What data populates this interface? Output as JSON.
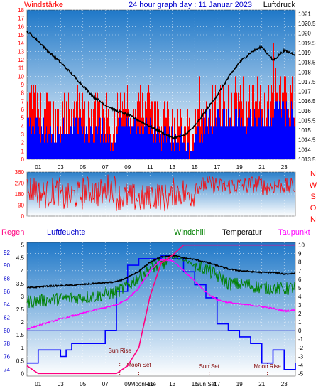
{
  "header": {
    "left_label": "Windstärke",
    "title": "24 hour graph day : 11 Januar 2023",
    "right_label": "Luftdruck"
  },
  "direction_labels": [
    "N",
    "W",
    "S",
    "O",
    "N"
  ],
  "lower_labels": {
    "regen": "Regen",
    "luftfeuchte": "Luftfeuchte",
    "windchill": "Windchill",
    "temperatur": "Temperatur",
    "taupunkt": "Taupunkt"
  },
  "colors": {
    "wind": "#ff0000",
    "wind_low": "#0000ff",
    "pressure": "#000000",
    "humidity": "#0000ff",
    "windchill": "#008000",
    "temperature": "#000000",
    "dewpoint": "#ff00ff",
    "rain": "#ff0080",
    "panel_top": "#1f78c8",
    "panel_bottom": "#ffffff"
  },
  "chart_data": [
    {
      "type": "line",
      "x_ticks": [
        "01",
        "03",
        "05",
        "07",
        "09",
        "11",
        "13",
        "15",
        "17",
        "19",
        "21",
        "23"
      ],
      "left_axis": {
        "ticks": [
          0,
          1,
          2,
          3,
          4,
          5,
          6,
          7,
          8,
          9,
          10,
          11,
          12,
          13,
          14,
          15,
          16,
          17,
          18
        ],
        "ylim": [
          0,
          18
        ]
      },
      "right_axis": {
        "ticks": [
          "1013.5",
          "1014",
          "1014.5",
          "1015",
          "1015.5",
          "1016",
          "1016.5",
          "1017",
          "1017.5",
          "1018",
          "1018.5",
          "1019",
          "1019.5",
          "1020",
          "1020.5",
          "1021"
        ],
        "ylim": [
          1013.5,
          1021.2
        ]
      },
      "pressure_points": [
        [
          0,
          1020.1
        ],
        [
          1,
          1019.6
        ],
        [
          2,
          1019.0
        ],
        [
          3,
          1018.5
        ],
        [
          4,
          1017.9
        ],
        [
          5,
          1017.3
        ],
        [
          6,
          1016.7
        ],
        [
          7,
          1016.3
        ],
        [
          8,
          1016.0
        ],
        [
          9,
          1015.8
        ],
        [
          10,
          1015.5
        ],
        [
          11,
          1015.2
        ],
        [
          12,
          1014.9
        ],
        [
          13,
          1014.6
        ],
        [
          14,
          1014.7
        ],
        [
          15,
          1015.2
        ],
        [
          16,
          1016.0
        ],
        [
          17,
          1016.8
        ],
        [
          18,
          1017.7
        ],
        [
          19,
          1018.5
        ],
        [
          20,
          1019.0
        ],
        [
          21,
          1019.3
        ],
        [
          22,
          1018.6
        ],
        [
          23,
          1019.1
        ],
        [
          24,
          1018.9
        ]
      ],
      "wind_level_hourly": [
        5.5,
        4.5,
        4.0,
        4.5,
        5.0,
        4.0,
        4.5,
        3.5,
        5.0,
        5.5,
        5.0,
        4.0,
        3.5,
        3.5,
        2.5,
        4.5,
        5.5,
        6.0,
        6.0,
        5.5,
        6.0,
        5.5,
        7.0,
        6.5
      ],
      "wind_gust_hourly": [
        16,
        13,
        11,
        9,
        10,
        9,
        10,
        8,
        12,
        13,
        12,
        9,
        8,
        8,
        5,
        10,
        14,
        15,
        12,
        11,
        12,
        11,
        18,
        14
      ]
    },
    {
      "type": "line",
      "direction_ticks": [
        0,
        90,
        180,
        270,
        360
      ],
      "ylim": [
        0,
        360
      ],
      "direction_hourly": [
        220,
        180,
        200,
        150,
        170,
        210,
        190,
        230,
        160,
        150,
        140,
        170,
        150,
        200,
        180,
        250,
        260,
        240,
        250,
        250,
        260,
        240,
        250,
        240
      ]
    },
    {
      "type": "line",
      "humidity_axis": {
        "ticks": [
          74,
          76,
          78,
          80,
          82,
          84,
          86,
          88,
          90,
          92
        ],
        "ylim": [
          73,
          93.5
        ]
      },
      "rain_axis": {
        "ticks": [
          "0",
          "0.5",
          "1",
          "1.5",
          "2",
          "2.5",
          "3",
          "3.5",
          "4",
          "4.5",
          "5"
        ],
        "ylim": [
          -0.1,
          5.1
        ]
      },
      "temperature_axis": {
        "ticks": [
          -5,
          -4,
          -3,
          -2,
          -1,
          0,
          1,
          2,
          3,
          4,
          5,
          6,
          7,
          8,
          9,
          10
        ],
        "ylim": [
          -5.3,
          10.3
        ]
      },
      "humidity_points": [
        [
          0,
          75
        ],
        [
          0.5,
          75
        ],
        [
          1,
          77
        ],
        [
          2,
          77
        ],
        [
          3,
          76
        ],
        [
          3.5,
          77
        ],
        [
          4,
          78
        ],
        [
          6,
          78
        ],
        [
          7,
          80
        ],
        [
          8,
          86
        ],
        [
          9,
          90
        ],
        [
          10,
          91
        ],
        [
          11,
          91
        ],
        [
          12,
          91.5
        ],
        [
          13,
          91
        ],
        [
          14,
          89
        ],
        [
          15,
          87
        ],
        [
          16,
          85
        ],
        [
          17,
          81
        ],
        [
          18,
          80
        ],
        [
          19,
          79
        ],
        [
          20,
          78
        ],
        [
          21,
          75
        ],
        [
          22,
          77
        ],
        [
          23,
          74
        ],
        [
          24,
          75
        ]
      ],
      "temperature_points": [
        [
          0,
          5.0
        ],
        [
          2,
          5.2
        ],
        [
          4,
          5.3
        ],
        [
          6,
          5.5
        ],
        [
          8,
          5.7
        ],
        [
          9,
          6.2
        ],
        [
          10,
          6.9
        ],
        [
          11,
          8.0
        ],
        [
          12,
          8.6
        ],
        [
          13,
          8.8
        ],
        [
          14,
          8.5
        ],
        [
          15,
          8.3
        ],
        [
          16,
          8.0
        ],
        [
          17,
          7.6
        ],
        [
          18,
          7.2
        ],
        [
          19,
          7.0
        ],
        [
          20,
          6.9
        ],
        [
          21,
          6.8
        ],
        [
          22,
          6.8
        ],
        [
          23,
          6.6
        ],
        [
          24,
          6.7
        ]
      ],
      "windchill_points": [
        [
          0,
          3.4
        ],
        [
          2,
          3.6
        ],
        [
          4,
          3.8
        ],
        [
          6,
          4.0
        ],
        [
          8,
          4.5
        ],
        [
          9,
          5.2
        ],
        [
          10,
          6.3
        ],
        [
          11,
          7.3
        ],
        [
          12,
          7.7
        ],
        [
          13,
          8.6
        ],
        [
          14,
          8.3
        ],
        [
          15,
          7.6
        ],
        [
          16,
          7.2
        ],
        [
          17,
          6.4
        ],
        [
          18,
          5.5
        ],
        [
          19,
          5.4
        ],
        [
          20,
          5.3
        ],
        [
          21,
          5.0
        ],
        [
          22,
          5.0
        ],
        [
          23,
          4.8
        ],
        [
          24,
          5.1
        ]
      ],
      "dewpoint_points": [
        [
          0,
          0.2
        ],
        [
          2,
          1.0
        ],
        [
          4,
          1.7
        ],
        [
          6,
          2.4
        ],
        [
          8,
          3.0
        ],
        [
          9,
          3.7
        ],
        [
          10,
          5.0
        ],
        [
          11,
          7.0
        ],
        [
          12,
          8.3
        ],
        [
          13,
          8.2
        ],
        [
          14,
          7.0
        ],
        [
          15,
          5.8
        ],
        [
          16,
          4.5
        ],
        [
          17,
          3.6
        ],
        [
          18,
          3.3
        ],
        [
          19,
          3.1
        ],
        [
          20,
          3.0
        ],
        [
          21,
          2.8
        ],
        [
          22,
          2.6
        ],
        [
          23,
          2.3
        ],
        [
          24,
          2.4
        ]
      ],
      "rain_points": [
        [
          0,
          0.3
        ],
        [
          1,
          0
        ],
        [
          8,
          0
        ],
        [
          9,
          0.3
        ],
        [
          10,
          1.0
        ],
        [
          11,
          3.0
        ],
        [
          12,
          4.3
        ],
        [
          13,
          4.6
        ],
        [
          14,
          5.0
        ],
        [
          24,
          5.0
        ]
      ],
      "annotations": [
        {
          "label": "Sun Rise",
          "hour": 8.3
        },
        {
          "label": "Sun Set",
          "hour": 16.3
        },
        {
          "label": "Moon Set",
          "hour": 10.0
        },
        {
          "label": "Moon Rise",
          "hour": 21.5
        },
        {
          "label": "MoonRise",
          "hour": 10.4
        },
        {
          "label": "Sun Set",
          "hour": 16.0
        }
      ]
    }
  ]
}
